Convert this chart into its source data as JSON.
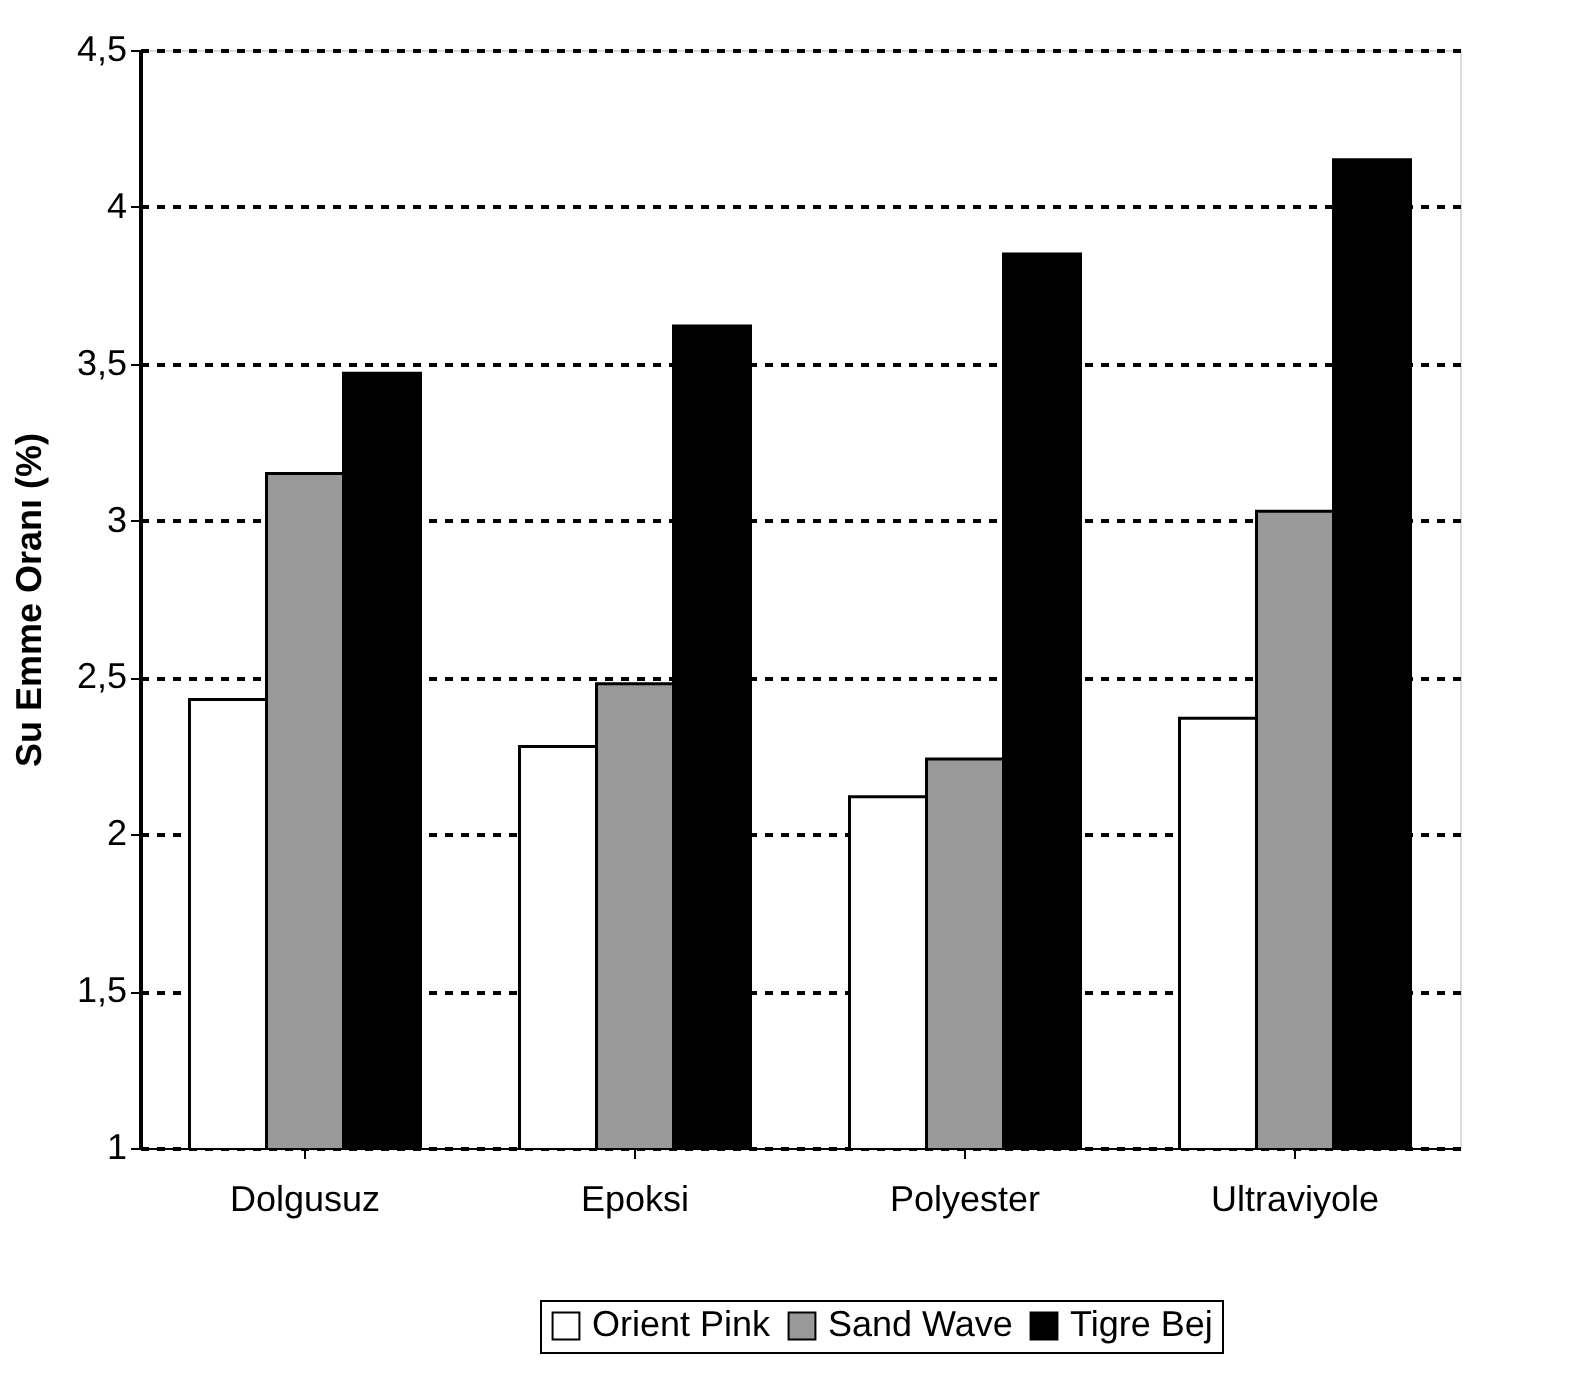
{
  "chart_data": {
    "type": "bar",
    "ylabel": "Su Emme Oranı (%)",
    "categories": [
      "Dolgusuz",
      "Epoksi",
      "Polyester",
      "Ultraviyole"
    ],
    "series": [
      {
        "name": "Orient Pink",
        "color": "#ffffff",
        "values": [
          2.43,
          2.28,
          2.12,
          2.37
        ]
      },
      {
        "name": "Sand Wave",
        "color": "#999999",
        "values": [
          3.15,
          2.48,
          2.24,
          3.03
        ]
      },
      {
        "name": "Tigre Bej",
        "color": "#000000",
        "values": [
          3.47,
          3.62,
          3.85,
          4.15
        ]
      }
    ],
    "ylim": [
      1,
      4.5
    ],
    "yticks": [
      {
        "value": 1,
        "label": "1"
      },
      {
        "value": 1.5,
        "label": "1,5"
      },
      {
        "value": 2,
        "label": "2"
      },
      {
        "value": 2.5,
        "label": "2,5"
      },
      {
        "value": 3,
        "label": "3"
      },
      {
        "value": 3.5,
        "label": "3,5"
      },
      {
        "value": 4,
        "label": "4"
      },
      {
        "value": 4.5,
        "label": "4,5"
      }
    ],
    "grid": "y",
    "line_style": "dashed",
    "legend": "bottom"
  }
}
